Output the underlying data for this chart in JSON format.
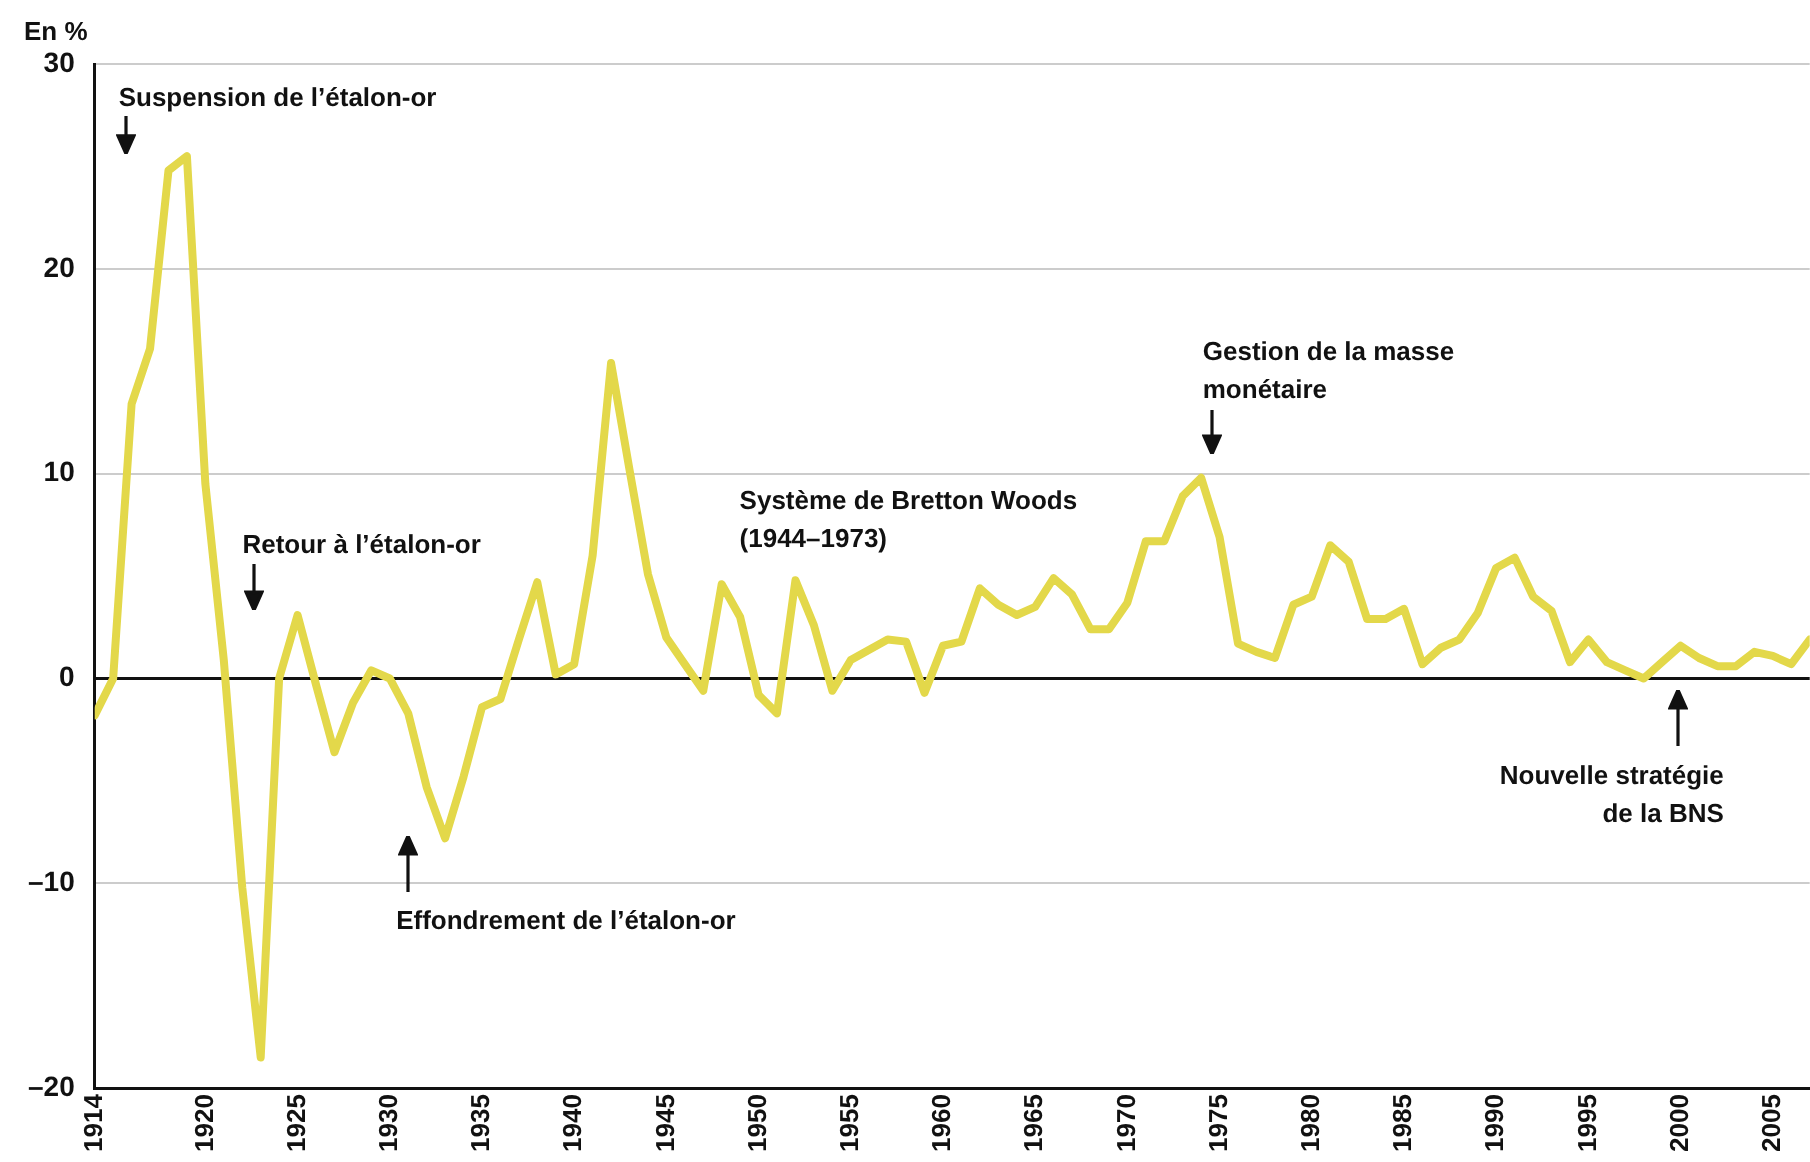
{
  "chart_data": {
    "type": "line",
    "ylabel": "En %",
    "x": [
      1914,
      1915,
      1916,
      1917,
      1918,
      1919,
      1920,
      1921,
      1922,
      1923,
      1924,
      1925,
      1926,
      1927,
      1928,
      1929,
      1930,
      1931,
      1932,
      1933,
      1934,
      1935,
      1936,
      1937,
      1938,
      1939,
      1940,
      1941,
      1942,
      1943,
      1944,
      1945,
      1946,
      1947,
      1948,
      1949,
      1950,
      1951,
      1952,
      1953,
      1954,
      1955,
      1956,
      1957,
      1958,
      1959,
      1960,
      1961,
      1962,
      1963,
      1964,
      1965,
      1966,
      1967,
      1968,
      1969,
      1970,
      1971,
      1972,
      1973,
      1974,
      1975,
      1976,
      1977,
      1978,
      1979,
      1980,
      1981,
      1982,
      1983,
      1984,
      1985,
      1986,
      1987,
      1988,
      1989,
      1990,
      1991,
      1992,
      1993,
      1994,
      1995,
      1996,
      1997,
      1998,
      1999,
      2000,
      2001,
      2002,
      2003,
      2004,
      2005,
      2006,
      2007
    ],
    "series": [
      {
        "color": "#e3d84a",
        "values": [
          -1.8,
          0.0,
          13.4,
          16.1,
          24.8,
          25.5,
          9.5,
          0.9,
          -10.2,
          -18.5,
          0.0,
          3.1,
          -0.3,
          -3.6,
          -1.2,
          0.4,
          0.0,
          -1.7,
          -5.3,
          -7.8,
          -4.8,
          -1.4,
          -1.0,
          1.9,
          4.7,
          0.2,
          0.7,
          6.0,
          15.4,
          10.2,
          5.1,
          2.0,
          0.7,
          -0.6,
          4.6,
          3.0,
          -0.8,
          -1.7,
          4.8,
          2.6,
          -0.6,
          0.9,
          1.4,
          1.9,
          1.8,
          -0.7,
          1.6,
          1.8,
          4.4,
          3.6,
          3.1,
          3.5,
          4.9,
          4.1,
          2.4,
          2.4,
          3.7,
          6.7,
          6.7,
          8.9,
          9.8,
          6.9,
          1.7,
          1.3,
          1.0,
          3.6,
          4.0,
          6.5,
          5.7,
          2.9,
          2.9,
          3.4,
          0.7,
          1.5,
          1.9,
          3.2,
          5.4,
          5.9,
          4.0,
          3.3,
          0.8,
          1.9,
          0.8,
          0.4,
          0.0,
          0.8,
          1.6,
          1.0,
          0.6,
          0.6,
          1.3,
          1.1,
          0.7,
          1.9
        ]
      }
    ],
    "xlim": [
      1914,
      2007
    ],
    "xticks": [
      1914,
      1920,
      1925,
      1930,
      1935,
      1940,
      1945,
      1950,
      1955,
      1960,
      1965,
      1970,
      1975,
      1980,
      1985,
      1990,
      1995,
      2000,
      2005
    ],
    "ylim": [
      -20,
      30
    ],
    "yticks": [
      {
        "value": -20,
        "label": "–20"
      },
      {
        "value": -10,
        "label": "–10"
      },
      0,
      10,
      20,
      30
    ],
    "grid": "y",
    "legend": false,
    "marker": "none",
    "line_style": "solid",
    "annotations": [
      "Suspension de l’étalon-or",
      "Retour à l’étalon-or",
      "Effondrement de l’étalon-or",
      "Système de Bretton Woods\n(1944–1973)",
      "Gestion de la masse\nmonétaire",
      "Nouvelle stratégie\nde la BNS"
    ]
  }
}
